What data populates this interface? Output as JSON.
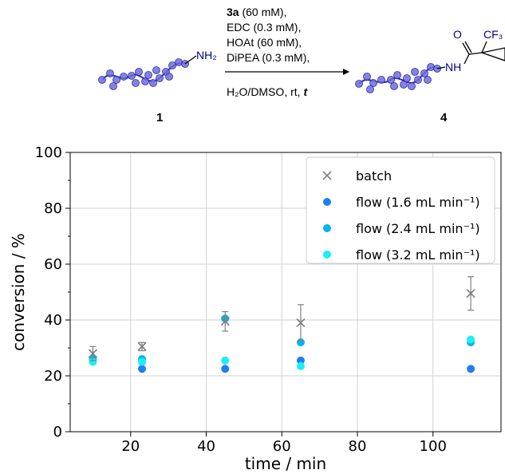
{
  "scheme": {
    "reagents": [
      {
        "bold": "3a",
        "text": " (60 mM),"
      },
      {
        "bold": "",
        "text": "EDC (0.3 mM),"
      },
      {
        "bold": "",
        "text": "HOAt (60 mM),"
      },
      {
        "bold": "",
        "text": "DiPEA (0.3 mM),"
      }
    ],
    "conditions": {
      "text": "H₂O/DMSO, rt, ",
      "bold_italic": "t"
    },
    "start_label": "1",
    "start_amine": "NH₂",
    "product_label": "4",
    "product_o": "O",
    "product_nh": "NH",
    "product_cf3": "CF₃",
    "colors": {
      "bead": "#6f6fd8",
      "bead_edge": "#2a2ab0",
      "chem": "#00008b"
    }
  },
  "chart_data": {
    "type": "scatter",
    "xlabel": "time / min",
    "ylabel": "conversion / %",
    "xlim": [
      4,
      118
    ],
    "ylim": [
      0,
      100
    ],
    "xticks": [
      20,
      40,
      60,
      80,
      100
    ],
    "yticks": [
      0,
      20,
      40,
      60,
      80,
      100
    ],
    "grid": true,
    "legend_position": "top-right",
    "series": [
      {
        "name": "batch",
        "marker": "x",
        "color": "#808080",
        "x": [
          10,
          23,
          45,
          65,
          110
        ],
        "y": [
          28,
          30.5,
          39.5,
          39,
          49.5
        ],
        "err": [
          2.5,
          1.5,
          3.5,
          6.5,
          6
        ]
      },
      {
        "name": "flow (1.6 mL min⁻¹)",
        "marker": "o",
        "color": "#1f7ff0",
        "x": [
          23,
          45,
          65,
          110
        ],
        "y": [
          22.5,
          22.5,
          25.5,
          22.5
        ]
      },
      {
        "name": "flow (2.4 mL min⁻¹)",
        "marker": "o",
        "color": "#00b4f0",
        "x": [
          10,
          23,
          45,
          65,
          110
        ],
        "y": [
          26,
          26,
          40.5,
          32,
          32
        ]
      },
      {
        "name": "flow (3.2 mL min⁻¹)",
        "marker": "o",
        "color": "#19f0f5",
        "x": [
          10,
          23,
          45,
          65,
          110
        ],
        "y": [
          25,
          25,
          25.5,
          23.5,
          33
        ]
      }
    ]
  }
}
